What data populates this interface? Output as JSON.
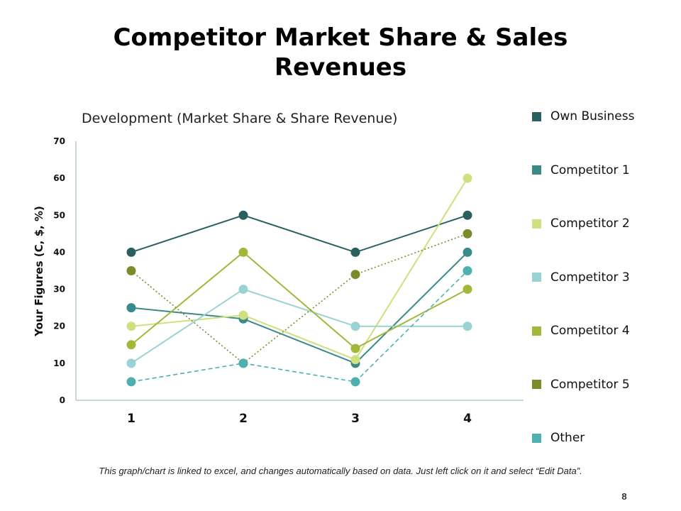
{
  "slide": {
    "title_line1": "Competitor Market Share & Sales",
    "title_line2": "Revenues",
    "footnote": "This graph/chart is linked to excel, and changes automatically based on data. Just left click on it and select “Edit Data”.",
    "page_number": "8"
  },
  "chart_data": {
    "type": "line",
    "title": "Development (Market Share & Share Revenue)",
    "xlabel": "",
    "ylabel": "Your Figures (C, $, %)",
    "categories": [
      "1",
      "2",
      "3",
      "4"
    ],
    "y_ticks": [
      "0",
      "10",
      "20",
      "30",
      "40",
      "50",
      "60",
      "70"
    ],
    "ylim": [
      0,
      70
    ],
    "grid": false,
    "legend_position": "right",
    "series": [
      {
        "name": "Own Business",
        "values": [
          40,
          50,
          40,
          50
        ],
        "color": "#2a5f5f",
        "style": "solid"
      },
      {
        "name": "Competitor 1",
        "values": [
          25,
          22,
          10,
          40
        ],
        "color": "#3a8a8a",
        "style": "solid"
      },
      {
        "name": "Competitor 2",
        "values": [
          20,
          23,
          11,
          60
        ],
        "color": "#cfe07f",
        "style": "solid"
      },
      {
        "name": "Competitor 3",
        "values": [
          10,
          30,
          20,
          20
        ],
        "color": "#99d3d3",
        "style": "solid"
      },
      {
        "name": "Competitor 4",
        "values": [
          15,
          40,
          14,
          30
        ],
        "color": "#a3b83a",
        "style": "solid"
      },
      {
        "name": "Competitor 5",
        "values": [
          35,
          10,
          34,
          45
        ],
        "color": "#7a8c2a",
        "style": "dotted"
      },
      {
        "name": "Other",
        "values": [
          5,
          10,
          5,
          35
        ],
        "color": "#4fb0b0",
        "style": "dashed"
      }
    ]
  }
}
